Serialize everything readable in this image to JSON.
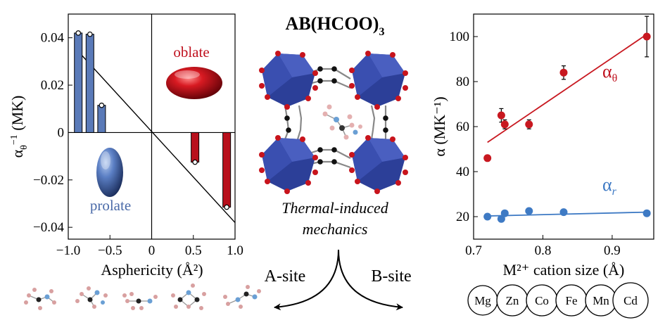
{
  "header": {
    "formula_main": "AB(HCOO)",
    "formula_sub": "3",
    "caption_line1": "Thermal-induced",
    "caption_line2": "mechanics",
    "a_site": "A-site",
    "b_site": "B-site"
  },
  "colors": {
    "blue": "#4a6aa8",
    "red": "#c0121f",
    "bar_blue": "#5a7ab8",
    "bar_red": "#b8101c",
    "point_blue": "#3e7ac4",
    "point_red": "#c81820",
    "octahedron": "#2c3f98",
    "oxygen": "#c8141c"
  },
  "chart_data": [
    {
      "type": "bar",
      "xlabel": "Asphericity (Å²)",
      "ylabel_main": "α",
      "ylabel_sub": "θ",
      "ylabel_sup": "−1",
      "ylabel_unit": " (MK)",
      "xlim": [
        -1.0,
        1.0
      ],
      "ylim": [
        -0.045,
        0.05
      ],
      "xticks": [
        -1.0,
        -0.5,
        0,
        0.5,
        1.0
      ],
      "xticklabels": [
        "−1.0",
        "−0.5",
        "0",
        "0.5",
        "1.0"
      ],
      "yticks": [
        0.04,
        0.02,
        0,
        -0.02,
        -0.04
      ],
      "yticklabels": [
        "0.04",
        "0.02",
        "0",
        "−0.02",
        "−0.04"
      ],
      "bars": [
        {
          "x": -0.88,
          "value": 0.042,
          "group": "prolate"
        },
        {
          "x": -0.74,
          "value": 0.0415,
          "group": "prolate"
        },
        {
          "x": -0.6,
          "value": 0.0115,
          "group": "prolate"
        },
        {
          "x": 0.52,
          "value": -0.0125,
          "group": "oblate"
        },
        {
          "x": 0.9,
          "value": -0.0315,
          "group": "oblate"
        }
      ],
      "trend_line": [
        [
          -0.9,
          0.035
        ],
        [
          1.0,
          -0.038
        ]
      ],
      "annotations": {
        "oblate": "oblate",
        "prolate": "prolate"
      }
    },
    {
      "type": "scatter",
      "xlabel": "M²⁺ cation size (Å)",
      "ylabel": "α (MK⁻¹)",
      "xlim": [
        0.7,
        0.96
      ],
      "ylim": [
        10,
        110
      ],
      "xticks": [
        0.7,
        0.8,
        0.9
      ],
      "xticklabels": [
        "0.7",
        "0.8",
        "0.9"
      ],
      "yticks": [
        20,
        40,
        60,
        80,
        100
      ],
      "yticklabels": [
        "20",
        "40",
        "60",
        "80",
        "100"
      ],
      "series": [
        {
          "name": "αθ",
          "label_main": "α",
          "label_sub": "θ",
          "x": [
            0.72,
            0.74,
            0.745,
            0.78,
            0.83,
            0.95
          ],
          "y": [
            46,
            65,
            61,
            61,
            84,
            100
          ],
          "err": [
            0,
            3,
            2,
            2,
            3,
            9
          ],
          "fit": [
            [
              0.72,
              53
            ],
            [
              0.95,
              101
            ]
          ]
        },
        {
          "name": "αr",
          "label_main": "α",
          "label_sub": "r",
          "x": [
            0.72,
            0.74,
            0.745,
            0.78,
            0.83,
            0.95
          ],
          "y": [
            20,
            19,
            21.5,
            22.5,
            22,
            21.5
          ],
          "fit": [
            [
              0.72,
              20.3
            ],
            [
              0.95,
              22
            ]
          ]
        }
      ],
      "cations": [
        "Mg",
        "Zn",
        "Co",
        "Fe",
        "Mn",
        "Cd"
      ]
    }
  ]
}
